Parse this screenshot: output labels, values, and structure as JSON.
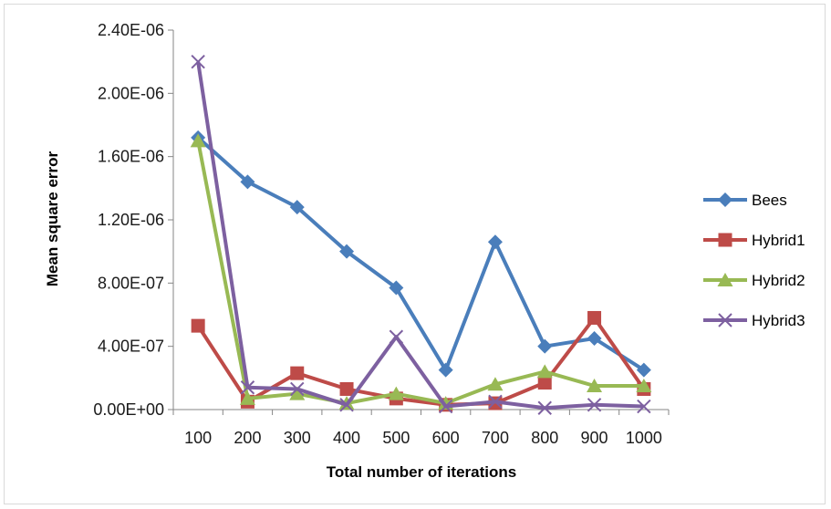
{
  "chart_data": {
    "type": "line",
    "title": "",
    "xlabel": "Total number of iterations",
    "ylabel": "Mean square error",
    "categories": [
      "100",
      "200",
      "300",
      "400",
      "500",
      "600",
      "700",
      "800",
      "900",
      "1000"
    ],
    "ylim": [
      0,
      2.4e-06
    ],
    "yticks": [
      0,
      4e-07,
      8e-07,
      1.2e-06,
      1.6e-06,
      2e-06,
      2.4e-06
    ],
    "ytick_labels": [
      "0.00E+00",
      "4.00E-07",
      "8.00E-07",
      "1.20E-06",
      "1.60E-06",
      "2.00E-06",
      "2.40E-06"
    ],
    "grid": false,
    "legend_position": "right",
    "series": [
      {
        "name": "Bees",
        "color": "#4a7ebb",
        "marker": "diamond",
        "values": [
          1.72e-06,
          1.44e-06,
          1.28e-06,
          1e-06,
          7.7e-07,
          2.5e-07,
          1.06e-06,
          4e-07,
          4.5e-07,
          2.5e-07
        ]
      },
      {
        "name": "Hybrid1",
        "color": "#be4b48",
        "marker": "square",
        "values": [
          5.3e-07,
          5e-08,
          2.3e-07,
          1.3e-07,
          7e-08,
          3e-08,
          4e-08,
          1.7e-07,
          5.8e-07,
          1.3e-07
        ]
      },
      {
        "name": "Hybrid2",
        "color": "#98b954",
        "marker": "triangle",
        "values": [
          1.7e-06,
          7e-08,
          1e-07,
          4e-08,
          1e-07,
          4e-08,
          1.6e-07,
          2.4e-07,
          1.5e-07,
          1.5e-07
        ]
      },
      {
        "name": "Hybrid3",
        "color": "#7d60a0",
        "marker": "x",
        "values": [
          2.2e-06,
          1.4e-07,
          1.3e-07,
          3e-08,
          4.6e-07,
          2e-08,
          5e-08,
          1e-08,
          3e-08,
          2e-08
        ]
      }
    ]
  }
}
